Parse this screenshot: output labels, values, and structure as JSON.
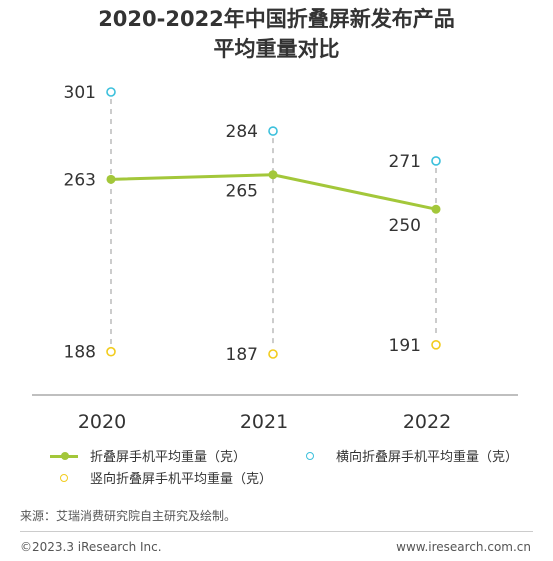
{
  "title_line1": "2020-2022年中国折叠屏新发布产品",
  "title_line2": "平均重量对比",
  "chart_data": {
    "type": "line",
    "title": "2020-2022年中国折叠屏新发布产品平均重量对比",
    "categories": [
      "2020",
      "2021",
      "2022"
    ],
    "series": [
      {
        "name": "折叠屏手机平均重量（克）",
        "values": [
          263,
          265,
          250
        ],
        "color": "#a3c73a",
        "marker": "filled-circle",
        "style": "line"
      },
      {
        "name": "横向折叠屏手机平均重量（克）",
        "values": [
          301,
          284,
          271
        ],
        "color": "#3cc0dc",
        "marker": "hollow-circle",
        "style": "points"
      },
      {
        "name": "竖向折叠屏手机平均重量（克）",
        "values": [
          188,
          187,
          191
        ],
        "color": "#f2cc1e",
        "marker": "hollow-circle",
        "style": "points"
      }
    ],
    "ylim": [
      180,
      305
    ],
    "grid": false,
    "legend": "bottom"
  },
  "legend": {
    "item1": "折叠屏手机平均重量（克）",
    "item2": "横向折叠屏手机平均重量（克）",
    "item3": "竖向折叠屏手机平均重量（克）"
  },
  "source": "来源：艾瑞消费研究院自主研究及绘制。",
  "footer_left": "©2023.3 iResearch Inc.",
  "footer_right": "www.iresearch.com.cn",
  "colors": {
    "axis": "#999999",
    "dash": "#cccccc",
    "text": "#333333"
  }
}
